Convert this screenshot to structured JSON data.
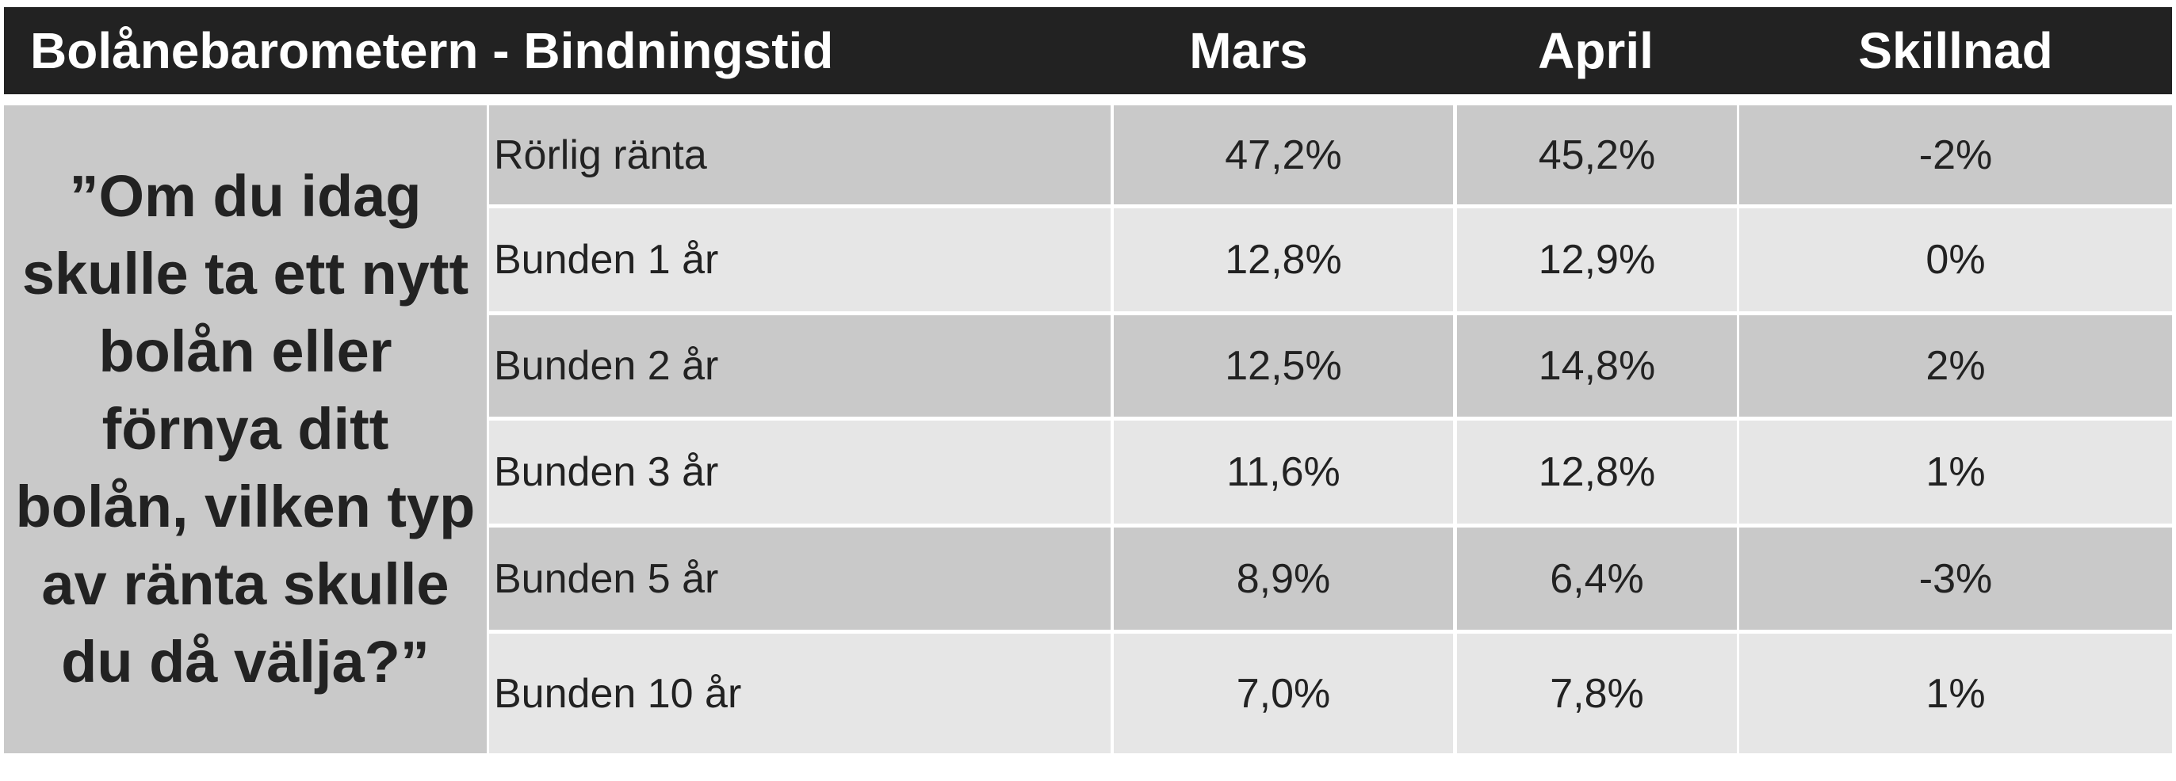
{
  "header": {
    "title": "Bolånebarometern - Bindningstid",
    "columns": [
      "Mars",
      "April",
      "Skillnad"
    ]
  },
  "question": "”Om du idag skulle ta ett nytt bolån eller förnya ditt bolån, vilken typ av ränta skulle du då välja?”",
  "table": {
    "rows": [
      [
        "Rörlig ränta",
        "47,2%",
        "45,2%",
        "-2%"
      ],
      [
        "Bunden 1 år",
        "12,8%",
        "12,9%",
        "0%"
      ],
      [
        "Bunden 2 år",
        "12,5%",
        "14,8%",
        "2%"
      ],
      [
        "Bunden 3 år",
        "11,6%",
        "12,8%",
        "1%"
      ],
      [
        "Bunden 5 år",
        "8,9%",
        "6,4%",
        "-3%"
      ],
      [
        "Bunden 10 år",
        "7,0%",
        "7,8%",
        "1%"
      ]
    ]
  }
}
